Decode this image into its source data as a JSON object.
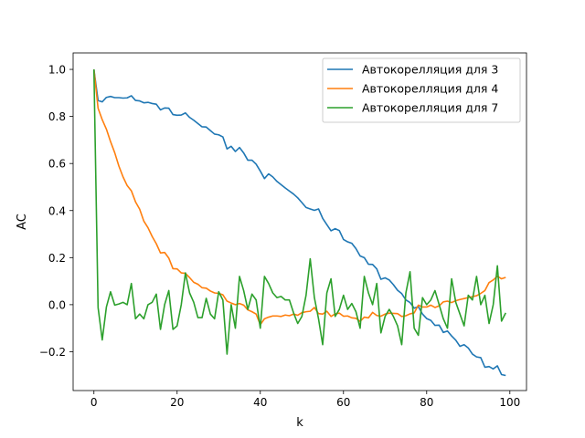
{
  "chart_data": {
    "type": "line",
    "title": "",
    "xlabel": "k",
    "ylabel": "AC",
    "xlim": [
      -5,
      104
    ],
    "ylim": [
      -0.365,
      1.07
    ],
    "xticks": [
      0,
      20,
      40,
      60,
      80,
      100
    ],
    "yticks": [
      -0.2,
      0.0,
      0.2,
      0.4,
      0.6,
      0.8,
      1.0
    ],
    "xtick_labels": [
      "0",
      "20",
      "40",
      "60",
      "80",
      "100"
    ],
    "ytick_labels": [
      "−0.2",
      "0.0",
      "0.2",
      "0.4",
      "0.6",
      "0.8",
      "1.0"
    ],
    "grid": false,
    "legend_position": "top-right",
    "x": [
      0,
      1,
      2,
      3,
      4,
      5,
      6,
      7,
      8,
      9,
      10,
      11,
      12,
      13,
      14,
      15,
      16,
      17,
      18,
      19,
      20,
      21,
      22,
      23,
      24,
      25,
      26,
      27,
      28,
      29,
      30,
      31,
      32,
      33,
      34,
      35,
      36,
      37,
      38,
      39,
      40,
      41,
      42,
      43,
      44,
      45,
      46,
      47,
      48,
      49,
      50,
      51,
      52,
      53,
      54,
      55,
      56,
      57,
      58,
      59,
      60,
      61,
      62,
      63,
      64,
      65,
      66,
      67,
      68,
      69,
      70,
      71,
      72,
      73,
      74,
      75,
      76,
      77,
      78,
      79,
      80,
      81,
      82,
      83,
      84,
      85,
      86,
      87,
      88,
      89,
      90,
      91,
      92,
      93,
      94,
      95,
      96,
      97,
      98,
      99
    ],
    "series": [
      {
        "name": "Автокорелляция для 3",
        "color": "#1f77b4",
        "values": [
          1.0,
          0.868,
          0.862,
          0.881,
          0.885,
          0.88,
          0.88,
          0.878,
          0.879,
          0.888,
          0.868,
          0.866,
          0.858,
          0.86,
          0.855,
          0.852,
          0.828,
          0.836,
          0.835,
          0.808,
          0.805,
          0.806,
          0.815,
          0.796,
          0.784,
          0.77,
          0.756,
          0.755,
          0.74,
          0.725,
          0.722,
          0.713,
          0.662,
          0.673,
          0.651,
          0.668,
          0.645,
          0.614,
          0.614,
          0.597,
          0.568,
          0.536,
          0.556,
          0.543,
          0.524,
          0.51,
          0.496,
          0.483,
          0.47,
          0.454,
          0.434,
          0.413,
          0.407,
          0.401,
          0.407,
          0.367,
          0.34,
          0.314,
          0.323,
          0.315,
          0.277,
          0.267,
          0.261,
          0.238,
          0.207,
          0.2,
          0.172,
          0.171,
          0.152,
          0.108,
          0.114,
          0.105,
          0.085,
          0.061,
          0.047,
          0.02,
          0.009,
          -0.015,
          -0.008,
          -0.04,
          -0.059,
          -0.067,
          -0.088,
          -0.087,
          -0.118,
          -0.112,
          -0.133,
          -0.151,
          -0.177,
          -0.17,
          -0.184,
          -0.21,
          -0.222,
          -0.225,
          -0.266,
          -0.263,
          -0.273,
          -0.26,
          -0.297,
          -0.301
        ]
      },
      {
        "name": "Автокорелляция для 4",
        "color": "#ff7f0e",
        "values": [
          1.0,
          0.835,
          0.786,
          0.746,
          0.693,
          0.646,
          0.589,
          0.543,
          0.506,
          0.484,
          0.437,
          0.406,
          0.355,
          0.327,
          0.29,
          0.259,
          0.22,
          0.222,
          0.198,
          0.153,
          0.152,
          0.135,
          0.133,
          0.115,
          0.095,
          0.087,
          0.072,
          0.07,
          0.058,
          0.05,
          0.048,
          0.042,
          0.015,
          0.007,
          0.0,
          0.005,
          -0.002,
          -0.022,
          -0.03,
          -0.04,
          -0.085,
          -0.06,
          -0.053,
          -0.048,
          -0.048,
          -0.05,
          -0.044,
          -0.047,
          -0.04,
          -0.045,
          -0.034,
          -0.03,
          -0.028,
          -0.012,
          -0.038,
          -0.04,
          -0.028,
          -0.05,
          -0.039,
          -0.036,
          -0.049,
          -0.048,
          -0.056,
          -0.058,
          -0.071,
          -0.053,
          -0.056,
          -0.033,
          -0.046,
          -0.049,
          -0.04,
          -0.036,
          -0.037,
          -0.038,
          -0.05,
          -0.047,
          -0.039,
          -0.035,
          -0.002,
          -0.01,
          -0.01,
          -0.002,
          -0.012,
          -0.005,
          0.012,
          0.015,
          0.009,
          0.017,
          0.022,
          0.026,
          0.03,
          0.034,
          0.038,
          0.048,
          0.06,
          0.094,
          0.105,
          0.121,
          0.11,
          0.116
        ]
      },
      {
        "name": "Автокорелляция для 7",
        "color": "#2ca02c",
        "values": [
          1.0,
          -0.012,
          -0.15,
          -0.01,
          0.055,
          -0.002,
          0.003,
          0.01,
          0.0,
          0.09,
          -0.06,
          -0.04,
          -0.06,
          0.0,
          0.01,
          0.045,
          -0.105,
          0.0,
          0.06,
          -0.105,
          -0.09,
          0.0,
          0.135,
          0.05,
          0.01,
          -0.055,
          -0.055,
          0.027,
          -0.04,
          -0.06,
          0.055,
          0.02,
          -0.21,
          0.0,
          -0.1,
          0.12,
          0.06,
          -0.02,
          0.045,
          0.02,
          -0.1,
          0.12,
          0.09,
          0.05,
          0.03,
          0.035,
          0.02,
          0.02,
          -0.035,
          -0.08,
          -0.05,
          0.04,
          0.195,
          0.03,
          -0.06,
          -0.17,
          0.05,
          0.11,
          -0.05,
          -0.02,
          0.04,
          -0.02,
          0.005,
          -0.03,
          -0.1,
          0.12,
          0.05,
          0.0,
          0.09,
          -0.12,
          -0.05,
          -0.02,
          -0.05,
          -0.09,
          -0.17,
          0.05,
          0.14,
          -0.1,
          -0.13,
          0.03,
          0.0,
          0.02,
          0.06,
          0.0,
          -0.06,
          -0.1,
          0.11,
          0.01,
          -0.04,
          -0.09,
          0.04,
          0.02,
          0.12,
          0.0,
          0.04,
          -0.08,
          0.0,
          0.165,
          -0.07,
          -0.035
        ]
      }
    ]
  }
}
